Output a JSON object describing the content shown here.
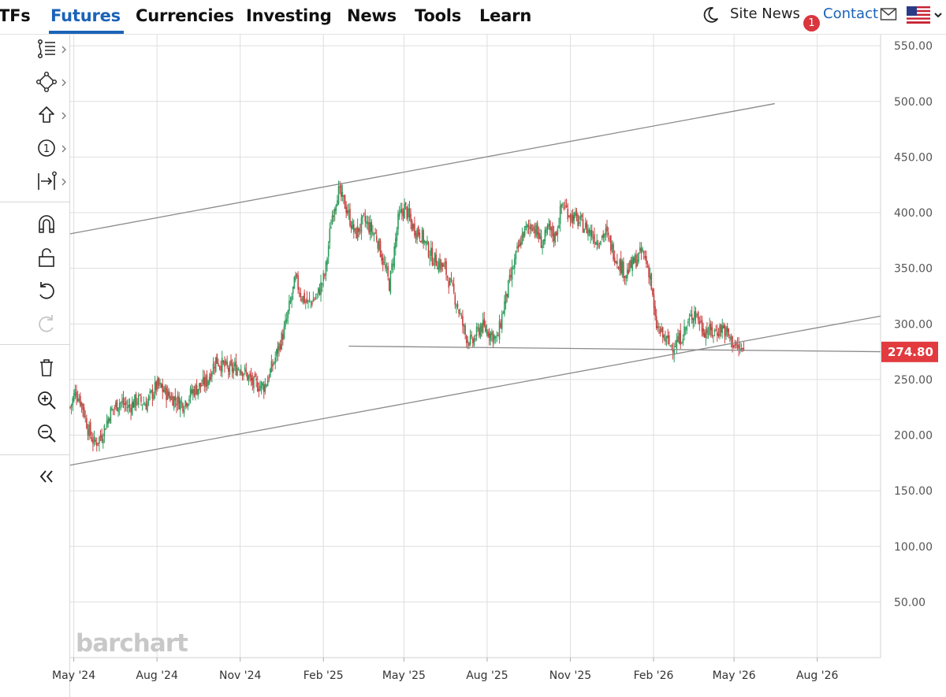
{
  "nav": {
    "items": [
      {
        "label": "TFs",
        "active": false
      },
      {
        "label": "Futures",
        "active": true
      },
      {
        "label": "Currencies",
        "active": false
      },
      {
        "label": "Investing",
        "active": false
      },
      {
        "label": "News",
        "active": false
      },
      {
        "label": "Tools",
        "active": false
      },
      {
        "label": "Learn",
        "active": false
      }
    ],
    "site_news_label": "Site News",
    "notification_count": "1",
    "contact_label": "Contact",
    "theme_icon": "moon-icon",
    "mail_icon": "envelope-icon",
    "region_icon": "us-flag-icon",
    "accent_color": "#1a63b8",
    "badge_color": "#d9363e"
  },
  "toolbar": {
    "tools": [
      {
        "icon": "line-tools-icon",
        "has_submenu": true
      },
      {
        "icon": "shapes-tools-icon",
        "has_submenu": true
      },
      {
        "icon": "arrow-up-annotation-icon",
        "has_submenu": true
      },
      {
        "icon": "number-marker-icon",
        "has_submenu": true
      },
      {
        "icon": "measure-tools-icon",
        "has_submenu": true
      },
      {
        "icon": "magnet-icon",
        "has_submenu": false
      },
      {
        "icon": "unlock-icon",
        "has_submenu": false
      },
      {
        "icon": "undo-icon",
        "has_submenu": false
      },
      {
        "icon": "redo-icon",
        "has_submenu": false,
        "disabled": true
      },
      {
        "icon": "trash-icon",
        "has_submenu": false
      },
      {
        "icon": "zoom-in-icon",
        "has_submenu": false
      },
      {
        "icon": "zoom-out-icon",
        "has_submenu": false
      },
      {
        "icon": "collapse-double-chevron-icon",
        "has_submenu": false
      }
    ]
  },
  "chart": {
    "watermark": "barchart",
    "last_price": "274.80",
    "last_price_color": "#e23b3f",
    "up_color": "#2e9e5e",
    "down_color": "#c94040",
    "trendline_color": "#8a8a8a"
  },
  "chart_data": {
    "type": "candlestick",
    "title": "",
    "xlabel": "",
    "ylabel": "",
    "ylim": [
      0,
      560
    ],
    "xlim": [
      "2024-04-27",
      "2026-10-10"
    ],
    "y_ticks": [
      "550.00",
      "500.00",
      "450.00",
      "400.00",
      "350.00",
      "300.00",
      "250.00",
      "200.00",
      "150.00",
      "100.00",
      "50.00"
    ],
    "x_ticks": [
      {
        "label": "May '24",
        "date": "2024-05-01"
      },
      {
        "label": "Aug '24",
        "date": "2024-08-01"
      },
      {
        "label": "Nov '24",
        "date": "2024-11-01"
      },
      {
        "label": "Feb '25",
        "date": "2025-02-01"
      },
      {
        "label": "May '25",
        "date": "2025-05-01"
      },
      {
        "label": "Aug '25",
        "date": "2025-08-01"
      },
      {
        "label": "Nov '25",
        "date": "2025-11-01"
      },
      {
        "label": "Feb '26",
        "date": "2026-02-01"
      },
      {
        "label": "May '26",
        "date": "2026-05-01"
      },
      {
        "label": "Aug '26",
        "date": "2026-08-01"
      }
    ],
    "grid": true,
    "price_path": [
      [
        "2024-04-27",
        225
      ],
      [
        "2024-05-03",
        240
      ],
      [
        "2024-05-10",
        228
      ],
      [
        "2024-05-17",
        205
      ],
      [
        "2024-05-24",
        192
      ],
      [
        "2024-06-01",
        200
      ],
      [
        "2024-06-10",
        220
      ],
      [
        "2024-06-20",
        230
      ],
      [
        "2024-07-01",
        225
      ],
      [
        "2024-07-10",
        232
      ],
      [
        "2024-07-20",
        228
      ],
      [
        "2024-08-01",
        245
      ],
      [
        "2024-08-15",
        235
      ],
      [
        "2024-08-30",
        228
      ],
      [
        "2024-09-10",
        240
      ],
      [
        "2024-09-25",
        248
      ],
      [
        "2024-10-05",
        268
      ],
      [
        "2024-10-20",
        258
      ],
      [
        "2024-11-01",
        262
      ],
      [
        "2024-11-15",
        246
      ],
      [
        "2024-11-28",
        244
      ],
      [
        "2024-12-08",
        265
      ],
      [
        "2024-12-20",
        295
      ],
      [
        "2025-01-01",
        340
      ],
      [
        "2025-01-08",
        325
      ],
      [
        "2025-01-15",
        318
      ],
      [
        "2025-01-25",
        325
      ],
      [
        "2025-02-03",
        345
      ],
      [
        "2025-02-10",
        395
      ],
      [
        "2025-02-17",
        420
      ],
      [
        "2025-02-26",
        405
      ],
      [
        "2025-03-08",
        380
      ],
      [
        "2025-03-18",
        393
      ],
      [
        "2025-04-01",
        378
      ],
      [
        "2025-04-10",
        350
      ],
      [
        "2025-04-15",
        335
      ],
      [
        "2025-04-25",
        395
      ],
      [
        "2025-05-02",
        405
      ],
      [
        "2025-05-10",
        388
      ],
      [
        "2025-05-20",
        380
      ],
      [
        "2025-06-01",
        360
      ],
      [
        "2025-06-15",
        350
      ],
      [
        "2025-06-28",
        320
      ],
      [
        "2025-07-08",
        290
      ],
      [
        "2025-07-15",
        282
      ],
      [
        "2025-07-25",
        298
      ],
      [
        "2025-08-05",
        292
      ],
      [
        "2025-08-12",
        285
      ],
      [
        "2025-08-20",
        318
      ],
      [
        "2025-09-01",
        358
      ],
      [
        "2025-09-10",
        382
      ],
      [
        "2025-09-20",
        390
      ],
      [
        "2025-10-01",
        372
      ],
      [
        "2025-10-08",
        385
      ],
      [
        "2025-10-15",
        378
      ],
      [
        "2025-10-23",
        408
      ],
      [
        "2025-11-01",
        398
      ],
      [
        "2025-11-10",
        392
      ],
      [
        "2025-11-20",
        385
      ],
      [
        "2025-12-01",
        375
      ],
      [
        "2025-12-10",
        382
      ],
      [
        "2025-12-20",
        362
      ],
      [
        "2026-01-01",
        345
      ],
      [
        "2026-01-10",
        355
      ],
      [
        "2026-01-20",
        365
      ],
      [
        "2026-01-28",
        345
      ],
      [
        "2026-02-03",
        300
      ],
      [
        "2026-02-10",
        290
      ],
      [
        "2026-02-20",
        280
      ],
      [
        "2026-03-01",
        285
      ],
      [
        "2026-03-10",
        298
      ],
      [
        "2026-03-18",
        312
      ],
      [
        "2026-03-28",
        295
      ],
      [
        "2026-04-08",
        292
      ],
      [
        "2026-04-18",
        297
      ],
      [
        "2026-04-28",
        285
      ],
      [
        "2026-05-05",
        278
      ],
      [
        "2026-05-12",
        274.8
      ]
    ],
    "trendlines": [
      {
        "name": "upper channel",
        "from": [
          "2024-04-27",
          381
        ],
        "to": [
          "2026-06-15",
          498
        ]
      },
      {
        "name": "lower channel",
        "from": [
          "2024-04-27",
          173
        ],
        "to": [
          "2026-10-10",
          307
        ]
      },
      {
        "name": "horizontal support",
        "from": [
          "2025-03-01",
          280
        ],
        "to": [
          "2026-10-10",
          275
        ]
      }
    ],
    "last_value": 274.8
  }
}
